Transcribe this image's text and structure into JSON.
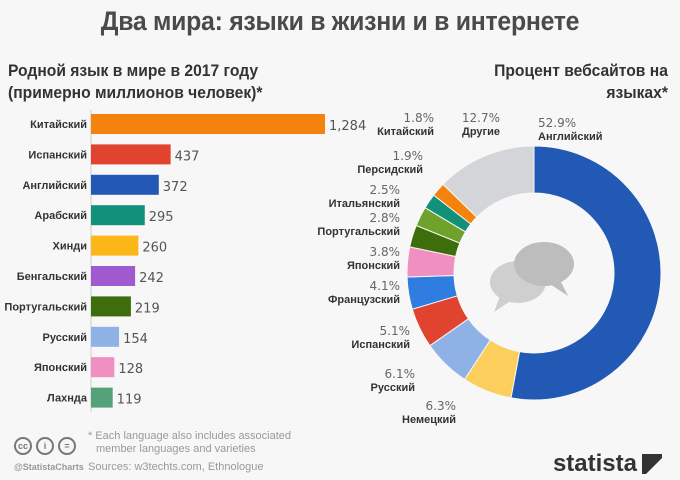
{
  "title": "Два мира: языки в жизни и в интернете",
  "chart_data": [
    {
      "type": "bar",
      "orientation": "horizontal",
      "title": "Родной язык в мире в 2017 году (примерно миллионов человек)*",
      "title_lines": [
        "Родной язык в мире в 2017 году",
        "(примерно миллионов человек)*"
      ],
      "categories": [
        "Китайский",
        "Испанский",
        "Английский",
        "Арабский",
        "Хинди",
        "Бенгальский",
        "Португальский",
        "Русский",
        "Японский",
        "Лахнда"
      ],
      "values": [
        1284,
        437,
        372,
        295,
        260,
        242,
        219,
        154,
        128,
        119
      ],
      "value_labels": [
        "1,284",
        "437",
        "372",
        "295",
        "260",
        "242",
        "219",
        "154",
        "128",
        "119"
      ],
      "colors": [
        "#f5820d",
        "#e0442f",
        "#2458b5",
        "#139079",
        "#fbb718",
        "#a05ad0",
        "#3e6e0c",
        "#8fb2e6",
        "#ef8fc2",
        "#55a27a"
      ],
      "grid": false
    },
    {
      "type": "pie",
      "variant": "donut",
      "title": "Процент вебсайтов на языках*",
      "title_lines": [
        "Процент вебсайтов на",
        "языках*"
      ],
      "categories": [
        "Английский",
        "Немецкий",
        "Русский",
        "Испанский",
        "Французский",
        "Японский",
        "Португальский",
        "Итальянский",
        "Персидский",
        "Китайский",
        "Другие"
      ],
      "values": [
        52.9,
        6.3,
        6.1,
        5.1,
        4.1,
        3.8,
        2.8,
        2.5,
        1.9,
        1.8,
        12.7
      ],
      "value_labels": [
        "52.9%",
        "6.3%",
        "6.1%",
        "5.1%",
        "4.1%",
        "3.8%",
        "2.8%",
        "2.5%",
        "1.9%",
        "1.8%",
        "12.7%"
      ],
      "colors": [
        "#2159b5",
        "#fccf5c",
        "#8fb2e6",
        "#e0442f",
        "#2f7de0",
        "#ef8fc2",
        "#3e6e0c",
        "#6fa22a",
        "#139079",
        "#f5820d",
        "#d3d5d8"
      ],
      "center_icon": "speech-bubbles-icon"
    }
  ],
  "footer": {
    "note_line1": "* Each language also includes associated",
    "note_line2": "member languages and varieties",
    "sources": "Sources: w3techts.com, Ethnologue",
    "handle": "@StatistaCharts",
    "license_icons": [
      "cc",
      "by",
      "nd"
    ],
    "logo": "statista"
  }
}
